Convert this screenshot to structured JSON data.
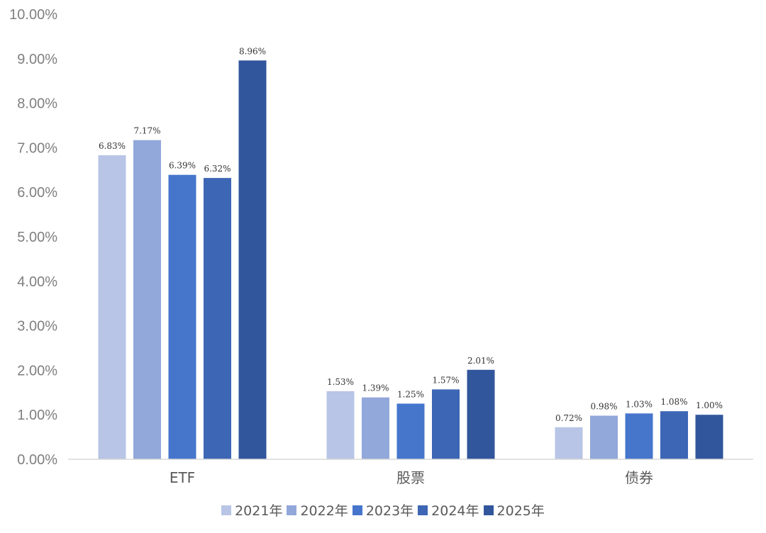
{
  "chart_data": {
    "type": "bar",
    "categories": [
      "ETF",
      "股票",
      "债券"
    ],
    "series": [
      {
        "name": "2021年",
        "color": "#b8c5e6",
        "values": [
          6.83,
          1.53,
          0.72
        ],
        "labels": [
          "6.83%",
          "1.53%",
          "0.72%"
        ]
      },
      {
        "name": "2022年",
        "color": "#92a7da",
        "values": [
          7.17,
          1.39,
          0.98
        ],
        "labels": [
          "7.17%",
          "1.39%",
          "0.98%"
        ]
      },
      {
        "name": "2023年",
        "color": "#4675cc",
        "values": [
          6.39,
          1.25,
          1.03
        ],
        "labels": [
          "6.39%",
          "1.25%",
          "1.03%"
        ]
      },
      {
        "name": "2024年",
        "color": "#3d66b5",
        "values": [
          6.32,
          1.57,
          1.08
        ],
        "labels": [
          "6.32%",
          "1.57%",
          "1.08%"
        ]
      },
      {
        "name": "2025年",
        "color": "#31569c",
        "values": [
          8.96,
          2.01,
          1.0
        ],
        "labels": [
          "8.96%",
          "2.01%",
          "1.00%"
        ]
      }
    ],
    "yticks": [
      "0.00%",
      "1.00%",
      "2.00%",
      "3.00%",
      "4.00%",
      "5.00%",
      "6.00%",
      "7.00%",
      "8.00%",
      "9.00%",
      "10.00%"
    ],
    "ylim": [
      0,
      10
    ],
    "grid": false,
    "legend_position": "bottom",
    "title": "",
    "xlabel": "",
    "ylabel": ""
  }
}
